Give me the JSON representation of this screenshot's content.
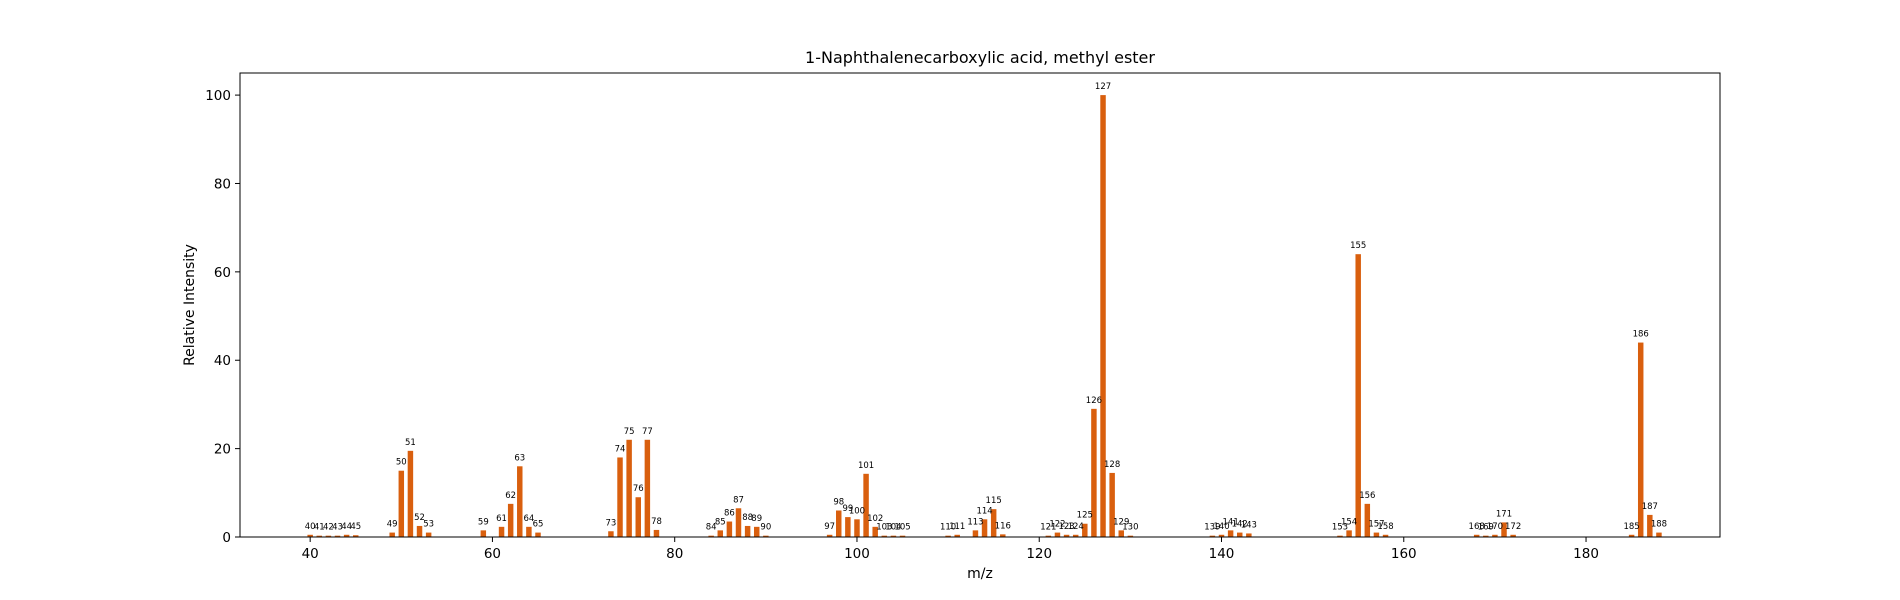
{
  "chart_data": {
    "type": "bar",
    "title": "1-Naphthalenecarboxylic acid, methyl ester",
    "xlabel": "m/z",
    "ylabel": "Relative Intensity",
    "xlim": [
      32.3,
      194.7
    ],
    "ylim": [
      0,
      105
    ],
    "xticks": [
      40,
      60,
      80,
      100,
      120,
      140,
      160,
      180
    ],
    "yticks": [
      0,
      20,
      40,
      60,
      80,
      100
    ],
    "grid": false,
    "bar_color": "#d95f0e",
    "x": [
      40,
      41,
      42,
      43,
      44,
      45,
      49,
      50,
      51,
      52,
      53,
      59,
      61,
      62,
      63,
      64,
      65,
      73,
      74,
      75,
      76,
      77,
      78,
      84,
      85,
      86,
      87,
      88,
      89,
      90,
      97,
      98,
      99,
      100,
      101,
      102,
      103,
      104,
      105,
      110,
      111,
      113,
      114,
      115,
      116,
      121,
      122,
      123,
      124,
      125,
      126,
      127,
      128,
      129,
      130,
      139,
      140,
      141,
      142,
      143,
      153,
      154,
      155,
      156,
      157,
      158,
      168,
      169,
      170,
      171,
      172,
      185,
      186,
      187,
      188
    ],
    "values": [
      0.5,
      0.3,
      0.3,
      0.3,
      0.5,
      0.4,
      1.0,
      15.0,
      19.5,
      2.5,
      1.0,
      1.5,
      2.3,
      7.5,
      16.0,
      2.3,
      1.0,
      1.3,
      18.0,
      22.0,
      9.0,
      22.0,
      1.6,
      0.3,
      1.5,
      3.5,
      6.5,
      2.5,
      2.3,
      0.3,
      0.5,
      6.0,
      4.5,
      4.0,
      14.3,
      2.3,
      0.3,
      0.3,
      0.3,
      0.3,
      0.5,
      1.5,
      4.0,
      6.3,
      0.6,
      0.3,
      1.0,
      0.5,
      0.5,
      3.0,
      29.0,
      100.0,
      14.5,
      1.5,
      0.3,
      0.3,
      0.5,
      1.5,
      1.0,
      0.8,
      0.3,
      1.5,
      64.0,
      7.5,
      1.0,
      0.5,
      0.5,
      0.3,
      0.5,
      3.3,
      0.5,
      0.5,
      44.0,
      5.0,
      1.0
    ]
  }
}
